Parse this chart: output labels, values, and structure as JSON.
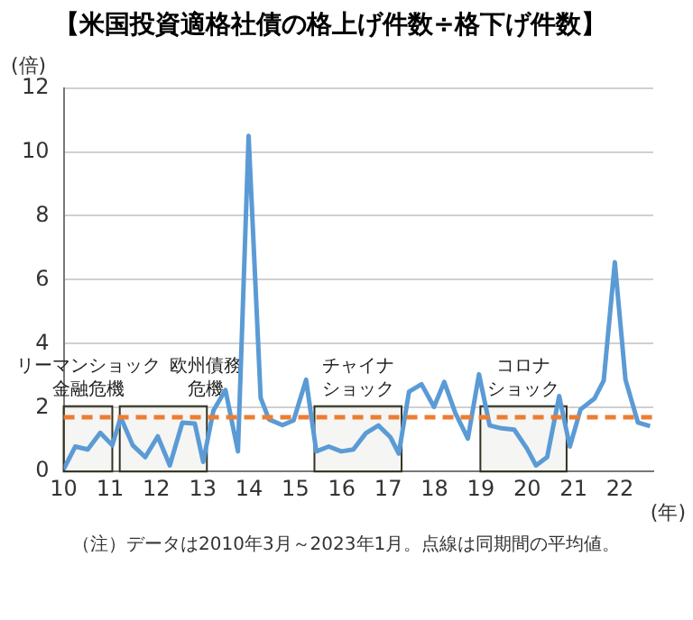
{
  "chart_data": {
    "type": "line",
    "title": "【米国投資適格社債の格上げ件数÷格下げ件数】",
    "ylabel": "(倍)",
    "xlabel": "(年)",
    "x": [
      10.0,
      10.25,
      10.52,
      10.79,
      11.05,
      11.23,
      11.49,
      11.76,
      12.03,
      12.29,
      12.56,
      12.83,
      13.01,
      13.23,
      13.49,
      13.76,
      13.99,
      14.25,
      14.43,
      14.72,
      14.96,
      15.23,
      15.45,
      15.72,
      15.99,
      16.25,
      16.52,
      16.79,
      17.05,
      17.23,
      17.45,
      17.72,
      17.99,
      18.21,
      18.45,
      18.72,
      18.96,
      19.19,
      19.45,
      19.72,
      19.99,
      20.19,
      20.43,
      20.69,
      20.92,
      21.15,
      21.45,
      21.65,
      21.89,
      22.12,
      22.39,
      22.65
    ],
    "series": [
      {
        "color": "#5b9bd5",
        "values": [
          0.07,
          0.78,
          0.69,
          1.21,
          0.82,
          1.7,
          0.82,
          0.45,
          1.1,
          0.19,
          1.53,
          1.5,
          0.3,
          1.9,
          2.55,
          0.63,
          10.5,
          2.3,
          1.63,
          1.45,
          1.6,
          2.87,
          0.63,
          0.78,
          0.63,
          0.69,
          1.2,
          1.44,
          1.07,
          0.56,
          2.5,
          2.73,
          2.02,
          2.8,
          1.83,
          1.03,
          3.04,
          1.44,
          1.35,
          1.31,
          0.73,
          0.19,
          0.45,
          2.36,
          0.78,
          1.94,
          2.28,
          2.84,
          6.55,
          2.87,
          1.53,
          1.42
        ]
      }
    ],
    "xlim": [
      10,
      22.72
    ],
    "xticks": [
      10,
      11,
      12,
      13,
      14,
      15,
      16,
      17,
      18,
      19,
      20,
      21,
      22
    ],
    "ylim": [
      0,
      12
    ],
    "yticks": [
      0,
      2,
      4,
      6,
      8,
      10,
      12
    ],
    "grid": "y",
    "legend": false,
    "marker": "none",
    "line_style": "solid",
    "ref_lines": [
      {
        "axis": "y",
        "value": 1.7,
        "color": "#ed7d31",
        "line_style": "dashed"
      }
    ],
    "bands": [
      {
        "axis": "x",
        "from": 10,
        "to": 11.05,
        "label": "リーマンショック金融危機",
        "color": "#333320"
      },
      {
        "axis": "x",
        "from": 11.21,
        "to": 13.09,
        "label": "欧州債務危機",
        "color": "#333320"
      },
      {
        "axis": "x",
        "from": 15.41,
        "to": 17.29,
        "label": "チャイナショック",
        "color": "#333320"
      },
      {
        "axis": "x",
        "from": 18.99,
        "to": 20.85,
        "label": "コロナショック",
        "color": "#333320"
      }
    ],
    "annotations": [
      "（注）データは2010年3月～2023年1月。点線は同期間の平均値。"
    ]
  }
}
